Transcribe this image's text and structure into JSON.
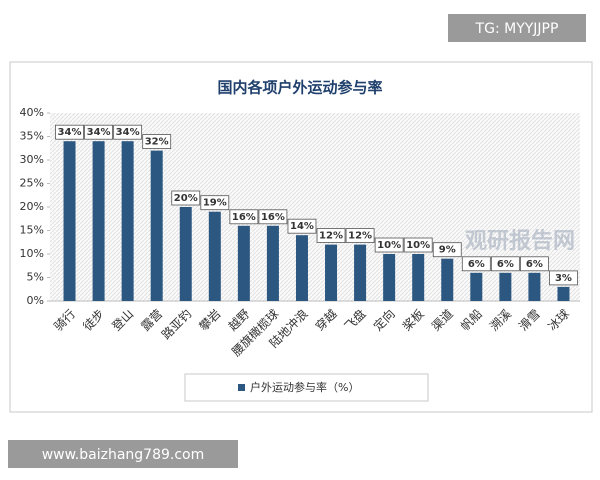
{
  "chart_data": {
    "type": "bar",
    "title": "国内各项户外运动参与率",
    "categories": [
      "骑行",
      "徒步",
      "登山",
      "露营",
      "路亚钓",
      "攀岩",
      "越野",
      "腰旗橄榄球",
      "陆地冲浪",
      "穿越",
      "飞盘",
      "定向",
      "桨板",
      "渠道",
      "帆船",
      "溯溪",
      "滑雪",
      "冰球"
    ],
    "series": [
      {
        "name": "户外运动参与率（%）",
        "color": "#2b5781",
        "values": [
          34,
          34,
          34,
          32,
          20,
          19,
          16,
          16,
          14,
          12,
          12,
          10,
          10,
          9,
          6,
          6,
          6,
          3
        ],
        "value_labels": [
          "34%",
          "34%",
          "34%",
          "32%",
          "20%",
          "19%",
          "16%",
          "16%",
          "14%",
          "12%",
          "12%",
          "10%",
          "10%",
          "9%",
          "6%",
          "6%",
          "6%",
          "3%"
        ]
      }
    ],
    "ylim": [
      0,
      40
    ],
    "yticks": [
      {
        "value": 0,
        "label": "0%"
      },
      {
        "value": 5,
        "label": "5%"
      },
      {
        "value": 10,
        "label": "10%"
      },
      {
        "value": 15,
        "label": "15%"
      },
      {
        "value": 20,
        "label": "20%"
      },
      {
        "value": 25,
        "label": "25%"
      },
      {
        "value": 30,
        "label": "30%"
      },
      {
        "value": 35,
        "label": "35%"
      },
      {
        "value": 40,
        "label": "40%"
      }
    ],
    "grid": false
  },
  "watermarks": {
    "top": "TG: MYYJJPP",
    "bottom": "www.baizhang789.com",
    "center": "观研报告网"
  }
}
